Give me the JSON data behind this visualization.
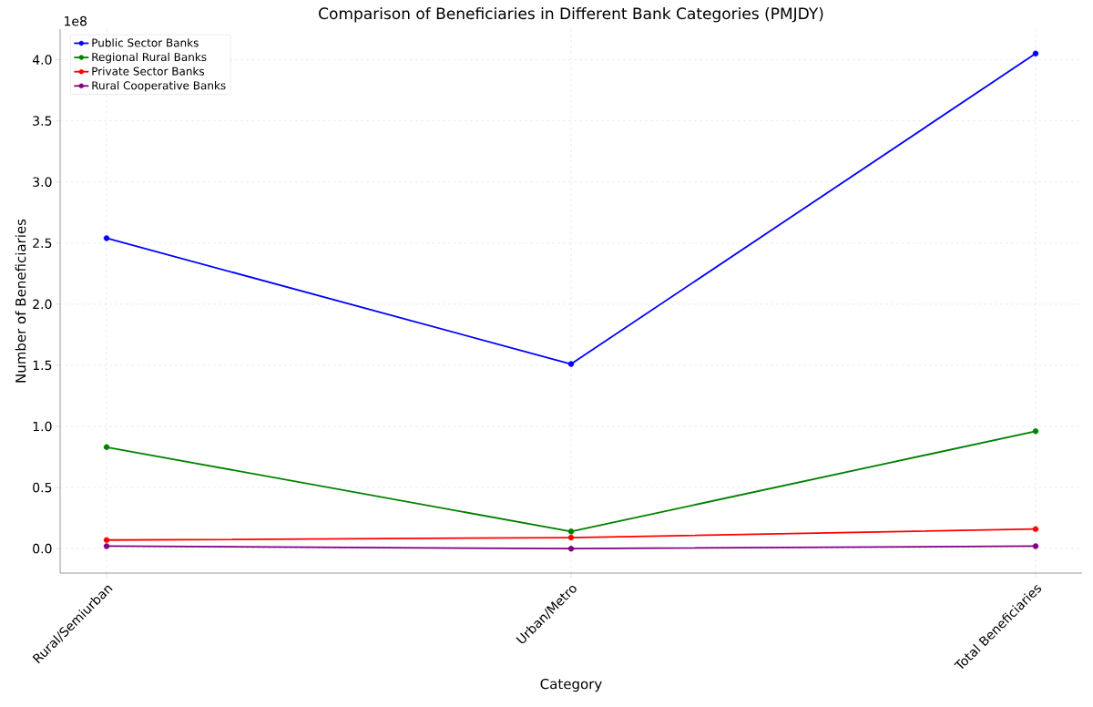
{
  "chart_data": {
    "type": "line",
    "title": "Comparison of Beneficiaries in Different Bank Categories (PMJDY)",
    "xlabel": "Category",
    "ylabel": "Number of Beneficiaries",
    "annotations": [
      "1e8"
    ],
    "categories": [
      "Rural/Semiurban",
      "Urban/Metro",
      "Total Beneficiaries"
    ],
    "series": [
      {
        "name": "Public Sector Banks",
        "color": "#0000ff",
        "values": [
          2.54,
          1.51,
          4.05
        ]
      },
      {
        "name": "Regional Rural Banks",
        "color": "#008000",
        "values": [
          0.83,
          0.14,
          0.96
        ]
      },
      {
        "name": "Private Sector Banks",
        "color": "#ff0000",
        "values": [
          0.07,
          0.09,
          0.16
        ]
      },
      {
        "name": "Rural Cooperative Banks",
        "color": "#800080",
        "values": [
          0.02,
          0.0,
          0.02
        ]
      }
    ],
    "ylim": [
      -0.2,
      4.25
    ],
    "yticks": [
      {
        "value": 0,
        "label": "0.0"
      },
      0.5,
      {
        "value": 1,
        "label": "1.0"
      },
      1.5,
      {
        "value": 2,
        "label": "2.0"
      },
      2.5,
      {
        "value": 3,
        "label": "3.0"
      },
      3.5,
      {
        "value": 4,
        "label": "4.0"
      }
    ],
    "grid": true,
    "legend": "top left",
    "marker": "circle",
    "line_style": "solid"
  }
}
